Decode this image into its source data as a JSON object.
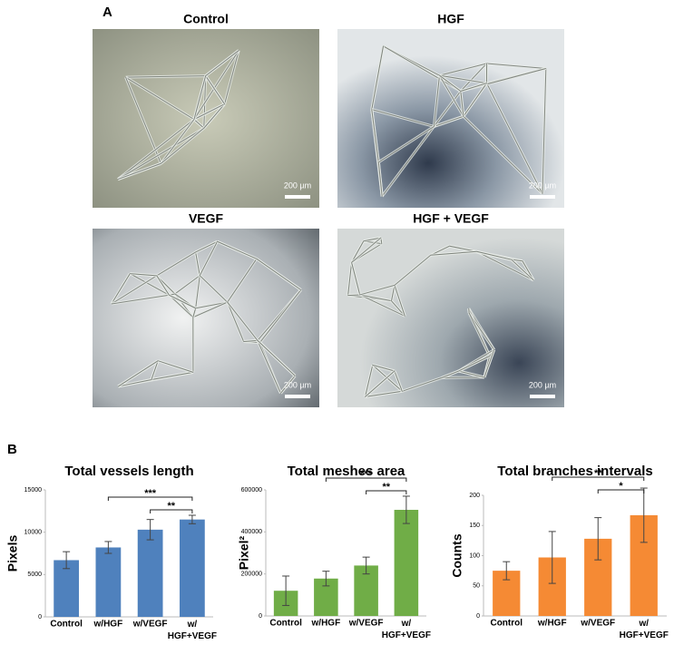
{
  "panel_a": {
    "label": "A",
    "images": [
      {
        "title": "Control",
        "scale": "200 µm"
      },
      {
        "title": "HGF",
        "scale": "200 µm"
      },
      {
        "title": "VEGF",
        "scale": "200 µm"
      },
      {
        "title": "HGF + VEGF",
        "scale": "200 µm"
      }
    ]
  },
  "panel_b": {
    "label": "B"
  },
  "chart_data": [
    {
      "type": "bar",
      "title": "Total vessels length",
      "ylabel": "Pixels",
      "categories": [
        "Control",
        "w/HGF",
        "w/VEGF",
        "w/ HGF+VEGF"
      ],
      "values": [
        6700,
        8200,
        10300,
        11500
      ],
      "errors": [
        1000,
        700,
        1200,
        500
      ],
      "color": "#4f81bd",
      "ylim": [
        0,
        15000
      ],
      "yticks": [
        0,
        5000,
        10000,
        15000
      ],
      "comparisons": [
        {
          "label": "***",
          "between": [
            1,
            3
          ]
        },
        {
          "label": "**",
          "between": [
            2,
            3
          ]
        }
      ]
    },
    {
      "type": "bar",
      "title": "Total meshes area",
      "ylabel": "Pixel²",
      "categories": [
        "Control",
        "w/HGF",
        "w/VEGF",
        "w/ HGF+VEGF"
      ],
      "values": [
        120000,
        178000,
        240000,
        505000
      ],
      "errors": [
        70000,
        35000,
        40000,
        65000
      ],
      "color": "#70ad47",
      "ylim": [
        0,
        600000
      ],
      "yticks": [
        0,
        200000,
        400000,
        600000
      ],
      "comparisons": [
        {
          "label": "***",
          "between": [
            1,
            3
          ]
        },
        {
          "label": "**",
          "between": [
            2,
            3
          ]
        }
      ]
    },
    {
      "type": "bar",
      "title": "Total branches intervals",
      "ylabel": "Counts",
      "categories": [
        "Control",
        "w/HGF",
        "w/VEGF",
        "w/ HGF+VEGF"
      ],
      "values": [
        75,
        97,
        128,
        167
      ],
      "errors": [
        15,
        43,
        35,
        45
      ],
      "color": "#f58a34",
      "ylim": [
        0,
        200
      ],
      "yticks": [
        0,
        50,
        100,
        150,
        200
      ],
      "comparisons": [
        {
          "label": "**",
          "between": [
            1,
            3
          ]
        },
        {
          "label": "*",
          "between": [
            2,
            3
          ]
        }
      ]
    }
  ]
}
